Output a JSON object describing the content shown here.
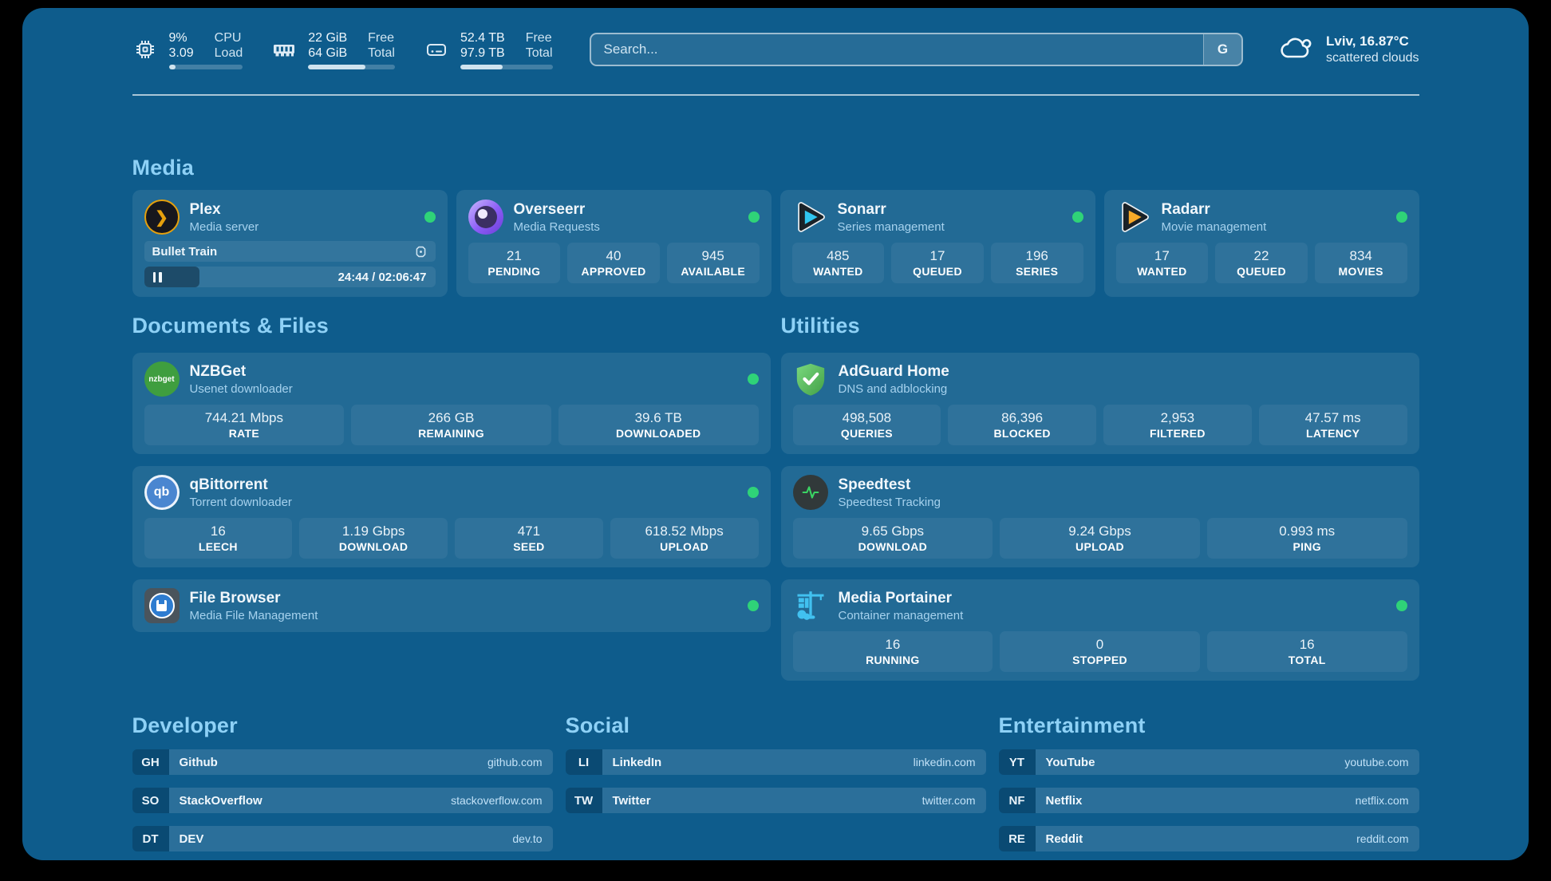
{
  "colors": {
    "page_bg": "#0e5c8c",
    "status_online": "#2fd378",
    "heading_text": "#8ed1f6",
    "plex_orange": "#e5a00d"
  },
  "header": {
    "system_stats": [
      {
        "icon": "cpu-chip-icon",
        "values": [
          "9%",
          "3.09"
        ],
        "labels": [
          "CPU",
          "Load"
        ],
        "progress_pct": 9
      },
      {
        "icon": "ram-icon",
        "values": [
          "22 GiB",
          "64 GiB"
        ],
        "labels": [
          "Free",
          "Total"
        ],
        "progress_pct": 66
      },
      {
        "icon": "disk-icon",
        "values": [
          "52.4 TB",
          "97.9 TB"
        ],
        "labels": [
          "Free",
          "Total"
        ],
        "progress_pct": 46
      }
    ],
    "search": {
      "placeholder": "Search...",
      "engine_button": "G"
    },
    "weather": {
      "icon": "cloud-icon",
      "location_temp": "Lviv, 16.87°C",
      "condition": "scattered clouds"
    }
  },
  "media": {
    "title": "Media",
    "cards": [
      {
        "icon": "plex-icon",
        "name": "Plex",
        "subtitle": "Media server",
        "status": "online",
        "now_playing": {
          "title": "Bullet Train",
          "time_display": "24:44 / 02:06:47",
          "progress_pct": 19
        }
      },
      {
        "icon": "overseerr-icon",
        "name": "Overseerr",
        "subtitle": "Media Requests",
        "status": "online",
        "stats": [
          {
            "value": "21",
            "label": "PENDING"
          },
          {
            "value": "40",
            "label": "APPROVED"
          },
          {
            "value": "945",
            "label": "AVAILABLE"
          }
        ]
      },
      {
        "icon": "sonarr-icon",
        "name": "Sonarr",
        "subtitle": "Series management",
        "status": "online",
        "stats": [
          {
            "value": "485",
            "label": "WANTED"
          },
          {
            "value": "17",
            "label": "QUEUED"
          },
          {
            "value": "196",
            "label": "SERIES"
          }
        ]
      },
      {
        "icon": "radarr-icon",
        "name": "Radarr",
        "subtitle": "Movie management",
        "status": "online",
        "stats": [
          {
            "value": "17",
            "label": "WANTED"
          },
          {
            "value": "22",
            "label": "QUEUED"
          },
          {
            "value": "834",
            "label": "MOVIES"
          }
        ]
      }
    ]
  },
  "documents_files": {
    "title": "Documents & Files",
    "cards": [
      {
        "icon": "nzbget-icon",
        "icon_label": "nzbget",
        "name": "NZBGet",
        "subtitle": "Usenet downloader",
        "status": "online",
        "stats": [
          {
            "value": "744.21 Mbps",
            "label": "RATE"
          },
          {
            "value": "266 GB",
            "label": "REMAINING"
          },
          {
            "value": "39.6 TB",
            "label": "DOWNLOADED"
          }
        ]
      },
      {
        "icon": "qbittorrent-icon",
        "icon_label": "qb",
        "name": "qBittorrent",
        "subtitle": "Torrent downloader",
        "status": "online",
        "stats": [
          {
            "value": "16",
            "label": "LEECH"
          },
          {
            "value": "1.19 Gbps",
            "label": "DOWNLOAD"
          },
          {
            "value": "471",
            "label": "SEED"
          },
          {
            "value": "618.52 Mbps",
            "label": "UPLOAD"
          }
        ]
      },
      {
        "icon": "file-browser-icon",
        "name": "File Browser",
        "subtitle": "Media File Management",
        "status": "online",
        "stats": []
      }
    ]
  },
  "utilities": {
    "title": "Utilities",
    "cards": [
      {
        "icon": "adguard-icon",
        "name": "AdGuard Home",
        "subtitle": "DNS and adblocking",
        "status": "none",
        "stats": [
          {
            "value": "498,508",
            "label": "QUERIES"
          },
          {
            "value": "86,396",
            "label": "BLOCKED"
          },
          {
            "value": "2,953",
            "label": "FILTERED"
          },
          {
            "value": "47.57 ms",
            "label": "LATENCY"
          }
        ]
      },
      {
        "icon": "speedtest-icon",
        "name": "Speedtest",
        "subtitle": "Speedtest Tracking",
        "status": "none",
        "stats": [
          {
            "value": "9.65 Gbps",
            "label": "DOWNLOAD"
          },
          {
            "value": "9.24 Gbps",
            "label": "UPLOAD"
          },
          {
            "value": "0.993 ms",
            "label": "PING"
          }
        ]
      },
      {
        "icon": "portainer-icon",
        "name": "Media Portainer",
        "subtitle": "Container management",
        "status": "online",
        "stats": [
          {
            "value": "16",
            "label": "RUNNING"
          },
          {
            "value": "0",
            "label": "STOPPED"
          },
          {
            "value": "16",
            "label": "TOTAL"
          }
        ]
      }
    ]
  },
  "link_sections": [
    {
      "title": "Developer",
      "links": [
        {
          "abbr": "GH",
          "name": "Github",
          "url": "github.com"
        },
        {
          "abbr": "SO",
          "name": "StackOverflow",
          "url": "stackoverflow.com"
        },
        {
          "abbr": "DT",
          "name": "DEV",
          "url": "dev.to"
        }
      ]
    },
    {
      "title": "Social",
      "links": [
        {
          "abbr": "LI",
          "name": "LinkedIn",
          "url": "linkedin.com"
        },
        {
          "abbr": "TW",
          "name": "Twitter",
          "url": "twitter.com"
        }
      ]
    },
    {
      "title": "Entertainment",
      "links": [
        {
          "abbr": "YT",
          "name": "YouTube",
          "url": "youtube.com"
        },
        {
          "abbr": "NF",
          "name": "Netflix",
          "url": "netflix.com"
        },
        {
          "abbr": "RE",
          "name": "Reddit",
          "url": "reddit.com"
        }
      ]
    }
  ]
}
